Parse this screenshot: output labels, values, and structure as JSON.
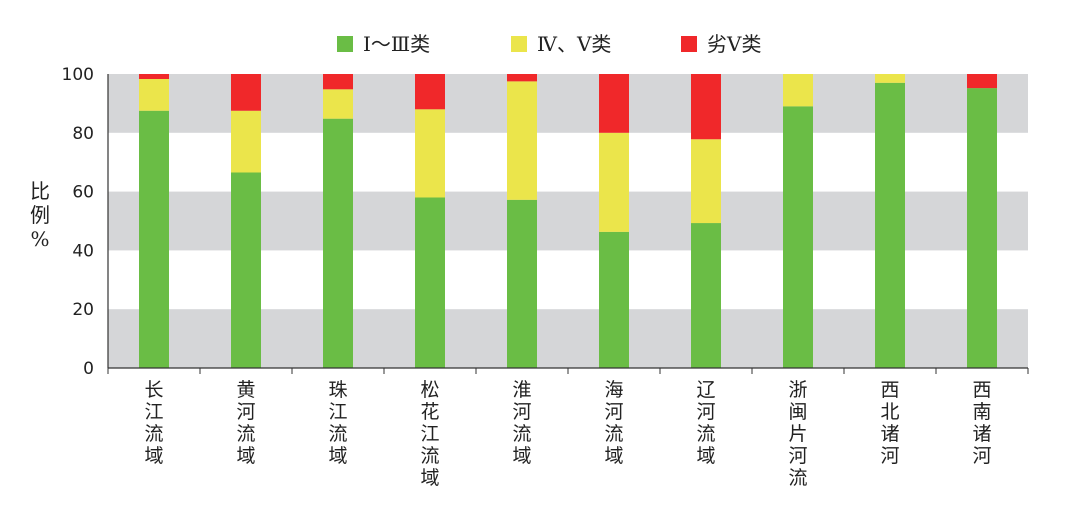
{
  "chart_data": {
    "type": "bar",
    "stacked": true,
    "title": "",
    "xlabel": "",
    "ylabel": "比例%",
    "ylim": [
      0,
      100
    ],
    "yticks": [
      0,
      20,
      40,
      60,
      80,
      100
    ],
    "grid": "alternating horizontal bands",
    "legend_position": "top-center",
    "categories": [
      "长江流域",
      "黄河流域",
      "珠江流域",
      "松花江流域",
      "淮河流域",
      "海河流域",
      "辽河流域",
      "浙闽片河流",
      "西北诸河",
      "西南诸河"
    ],
    "series": [
      {
        "name": "Ⅰ～Ⅲ类",
        "color": "#6abd45",
        "values": [
          87.5,
          66.5,
          84.8,
          58.0,
          57.2,
          46.3,
          49.3,
          89.0,
          97.0,
          95.2
        ]
      },
      {
        "name": "Ⅳ、Ⅴ类",
        "color": "#ebe54b",
        "values": [
          10.8,
          21.0,
          10.0,
          30.0,
          40.3,
          33.7,
          28.5,
          11.0,
          3.0,
          0.0
        ]
      },
      {
        "name": "劣Ⅴ类",
        "color": "#f0282a",
        "values": [
          1.7,
          12.5,
          5.2,
          12.0,
          2.5,
          20.0,
          22.2,
          0.0,
          0.0,
          4.8
        ]
      }
    ],
    "colors": {
      "band": "#d5d6d8",
      "axis": "#333333"
    }
  }
}
